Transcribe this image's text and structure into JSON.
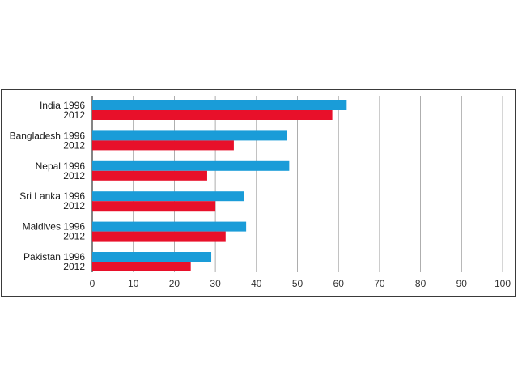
{
  "chart_data": {
    "type": "bar",
    "orientation": "horizontal",
    "categories": [
      "India",
      "Bangladesh",
      "Nepal",
      "Sri Lanka",
      "Maldives",
      "Pakistan"
    ],
    "series": [
      {
        "label": "1996",
        "color": "#1a9cd8",
        "values": [
          62,
          47.5,
          48,
          37,
          37.5,
          29
        ]
      },
      {
        "label": "2012",
        "color": "#e8102a",
        "values": [
          58.5,
          34.5,
          28,
          30,
          32.5,
          24
        ]
      }
    ],
    "xlim": [
      0,
      100
    ],
    "xticks": [
      0,
      10,
      20,
      30,
      40,
      50,
      60,
      70,
      80,
      90,
      100
    ],
    "grid": "vertical",
    "legend": "none"
  }
}
